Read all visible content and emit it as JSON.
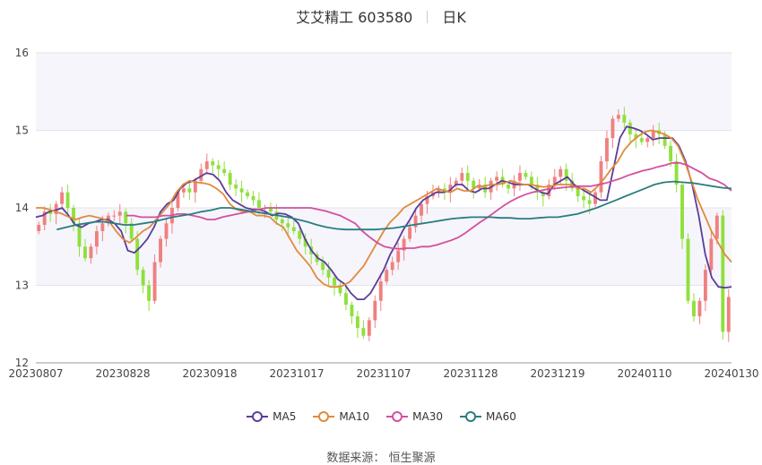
{
  "title": {
    "stock": "艾艾精工 603580",
    "period": "日K"
  },
  "source": {
    "label": "数据来源：",
    "value": "恒生聚源"
  },
  "chart_data": {
    "type": "candlestick",
    "ylim": [
      12,
      16
    ],
    "yticks": [
      "12",
      "13",
      "14",
      "15",
      "16"
    ],
    "xticks": [
      "20230807",
      "20230828",
      "20230918",
      "20231017",
      "20231107",
      "20231128",
      "20231219",
      "20240110",
      "20240130"
    ],
    "up_color": "#f08080",
    "down_color": "#8fe03c",
    "closes": [
      13.78,
      13.95,
      13.92,
      14.05,
      14.2,
      14.0,
      13.8,
      13.5,
      13.35,
      13.5,
      13.7,
      13.8,
      13.9,
      13.9,
      13.95,
      13.8,
      13.6,
      13.2,
      13.0,
      12.8,
      13.3,
      13.6,
      13.8,
      14.0,
      14.2,
      14.25,
      14.2,
      14.35,
      14.5,
      14.6,
      14.55,
      14.5,
      14.45,
      14.3,
      14.25,
      14.2,
      14.15,
      14.1,
      14.0,
      14.0,
      13.95,
      13.85,
      13.8,
      13.75,
      13.7,
      13.6,
      13.5,
      13.4,
      13.3,
      13.2,
      13.1,
      13.0,
      12.9,
      12.75,
      12.6,
      12.45,
      12.35,
      12.55,
      12.8,
      13.05,
      13.2,
      13.3,
      13.45,
      13.6,
      13.75,
      13.9,
      14.05,
      14.15,
      14.2,
      14.25,
      14.2,
      14.3,
      14.35,
      14.45,
      14.35,
      14.25,
      14.3,
      14.2,
      14.35,
      14.4,
      14.3,
      14.25,
      14.35,
      14.45,
      14.4,
      14.3,
      14.2,
      14.15,
      14.3,
      14.4,
      14.5,
      14.35,
      14.25,
      14.15,
      14.1,
      14.05,
      14.2,
      14.6,
      14.9,
      15.15,
      15.2,
      15.1,
      14.95,
      14.9,
      14.85,
      14.9,
      15.0,
      14.95,
      14.8,
      14.6,
      14.3,
      13.6,
      12.8,
      12.6,
      12.8,
      13.2,
      13.6,
      13.9,
      12.4,
      12.85
    ],
    "series": [
      {
        "name": "MA5",
        "color": "#5b3d9a",
        "values": [
          13.88,
          13.9,
          13.95,
          13.97,
          14.0,
          13.9,
          13.78,
          13.75,
          13.8,
          13.82,
          13.85,
          13.85,
          13.8,
          13.7,
          13.45,
          13.42,
          13.5,
          13.6,
          13.75,
          13.95,
          14.05,
          14.1,
          14.25,
          14.32,
          14.35,
          14.4,
          14.45,
          14.43,
          14.35,
          14.2,
          14.1,
          14.05,
          14.0,
          13.98,
          13.98,
          13.95,
          13.9,
          13.93,
          13.92,
          13.88,
          13.8,
          13.6,
          13.45,
          13.35,
          13.3,
          13.2,
          13.08,
          13.02,
          12.9,
          12.82,
          12.82,
          12.9,
          13.05,
          13.2,
          13.4,
          13.55,
          13.72,
          13.85,
          14.0,
          14.1,
          14.15,
          14.2,
          14.2,
          14.22,
          14.3,
          14.3,
          14.22,
          14.2,
          14.25,
          14.25,
          14.3,
          14.35,
          14.33,
          14.3,
          14.3,
          14.3,
          14.25,
          14.2,
          14.18,
          14.3,
          14.35,
          14.4,
          14.3,
          14.25,
          14.2,
          14.15,
          14.1,
          14.1,
          14.5,
          14.9,
          15.05,
          15.03,
          15.0,
          14.95,
          14.88,
          14.9,
          14.9,
          14.9,
          14.8,
          14.6,
          14.3,
          13.9,
          13.4,
          13.1,
          12.98,
          12.97,
          12.98
        ]
      },
      {
        "name": "MA10",
        "color": "#e18a3b",
        "values": [
          14.0,
          14.0,
          13.98,
          13.95,
          13.92,
          13.88,
          13.85,
          13.88,
          13.9,
          13.88,
          13.86,
          13.82,
          13.7,
          13.6,
          13.55,
          13.62,
          13.7,
          13.75,
          13.85,
          13.95,
          14.05,
          14.2,
          14.3,
          14.35,
          14.33,
          14.32,
          14.3,
          14.25,
          14.18,
          14.05,
          13.98,
          13.95,
          13.95,
          13.9,
          13.9,
          13.88,
          13.8,
          13.75,
          13.6,
          13.45,
          13.35,
          13.25,
          13.1,
          13.02,
          12.98,
          12.98,
          13.0,
          13.05,
          13.15,
          13.25,
          13.4,
          13.55,
          13.7,
          13.82,
          13.9,
          14.0,
          14.05,
          14.1,
          14.15,
          14.2,
          14.25,
          14.22,
          14.2,
          14.25,
          14.22,
          14.22,
          14.28,
          14.28,
          14.3,
          14.3,
          14.32,
          14.35,
          14.32,
          14.3,
          14.3,
          14.28,
          14.27,
          14.28,
          14.3,
          14.3,
          14.3,
          14.25,
          14.25,
          14.2,
          14.28,
          14.38,
          14.5,
          14.6,
          14.75,
          14.85,
          14.92,
          14.98,
          15.0,
          14.98,
          14.95,
          14.9,
          14.8,
          14.6,
          14.35,
          14.1,
          13.9,
          13.7,
          13.55,
          13.4,
          13.3
        ]
      },
      {
        "name": "MA30",
        "color": "#d44f9e",
        "values": [
          13.9,
          13.9,
          13.88,
          13.88,
          13.88,
          13.9,
          13.9,
          13.92,
          13.92,
          13.9,
          13.88,
          13.85,
          13.85,
          13.88,
          13.9,
          13.92,
          13.94,
          13.96,
          13.98,
          14.0,
          14.0,
          14.0,
          14.0,
          14.0,
          14.0,
          14.0,
          13.98,
          13.96,
          13.93,
          13.9,
          13.85,
          13.8,
          13.7,
          13.62,
          13.55,
          13.5,
          13.48,
          13.47,
          13.48,
          13.48,
          13.5,
          13.5,
          13.52,
          13.55,
          13.58,
          13.62,
          13.68,
          13.75,
          13.82,
          13.88,
          13.95,
          14.02,
          14.08,
          14.13,
          14.17,
          14.2,
          14.22,
          14.24,
          14.25,
          14.26,
          14.27,
          14.28,
          14.28,
          14.28,
          14.3,
          14.32,
          14.35,
          14.38,
          14.42,
          14.45,
          14.48,
          14.5,
          14.53,
          14.55,
          14.58,
          14.58,
          14.55,
          14.5,
          14.45,
          14.38,
          14.35,
          14.3,
          14.22
        ]
      },
      {
        "name": "MA60",
        "color": "#2a7d7f",
        "values": [
          13.72,
          13.75,
          13.78,
          13.8,
          13.82,
          13.82,
          13.8,
          13.78,
          13.78,
          13.8,
          13.82,
          13.85,
          13.88,
          13.9,
          13.92,
          13.95,
          13.97,
          14.0,
          14.0,
          13.98,
          13.96,
          13.94,
          13.92,
          13.9,
          13.88,
          13.85,
          13.82,
          13.78,
          13.75,
          13.73,
          13.72,
          13.72,
          13.72,
          13.72,
          13.73,
          13.74,
          13.76,
          13.78,
          13.8,
          13.82,
          13.84,
          13.86,
          13.87,
          13.88,
          13.88,
          13.88,
          13.87,
          13.87,
          13.86,
          13.86,
          13.87,
          13.88,
          13.88,
          13.9,
          13.92,
          13.96,
          14.0,
          14.05,
          14.1,
          14.15,
          14.2,
          14.25,
          14.3,
          14.33,
          14.34,
          14.33,
          14.32,
          14.3,
          14.28,
          14.26,
          14.25
        ]
      }
    ],
    "legend": [
      "MA5",
      "MA10",
      "MA30",
      "MA60"
    ],
    "legend_position": "bottom",
    "grid": true
  }
}
